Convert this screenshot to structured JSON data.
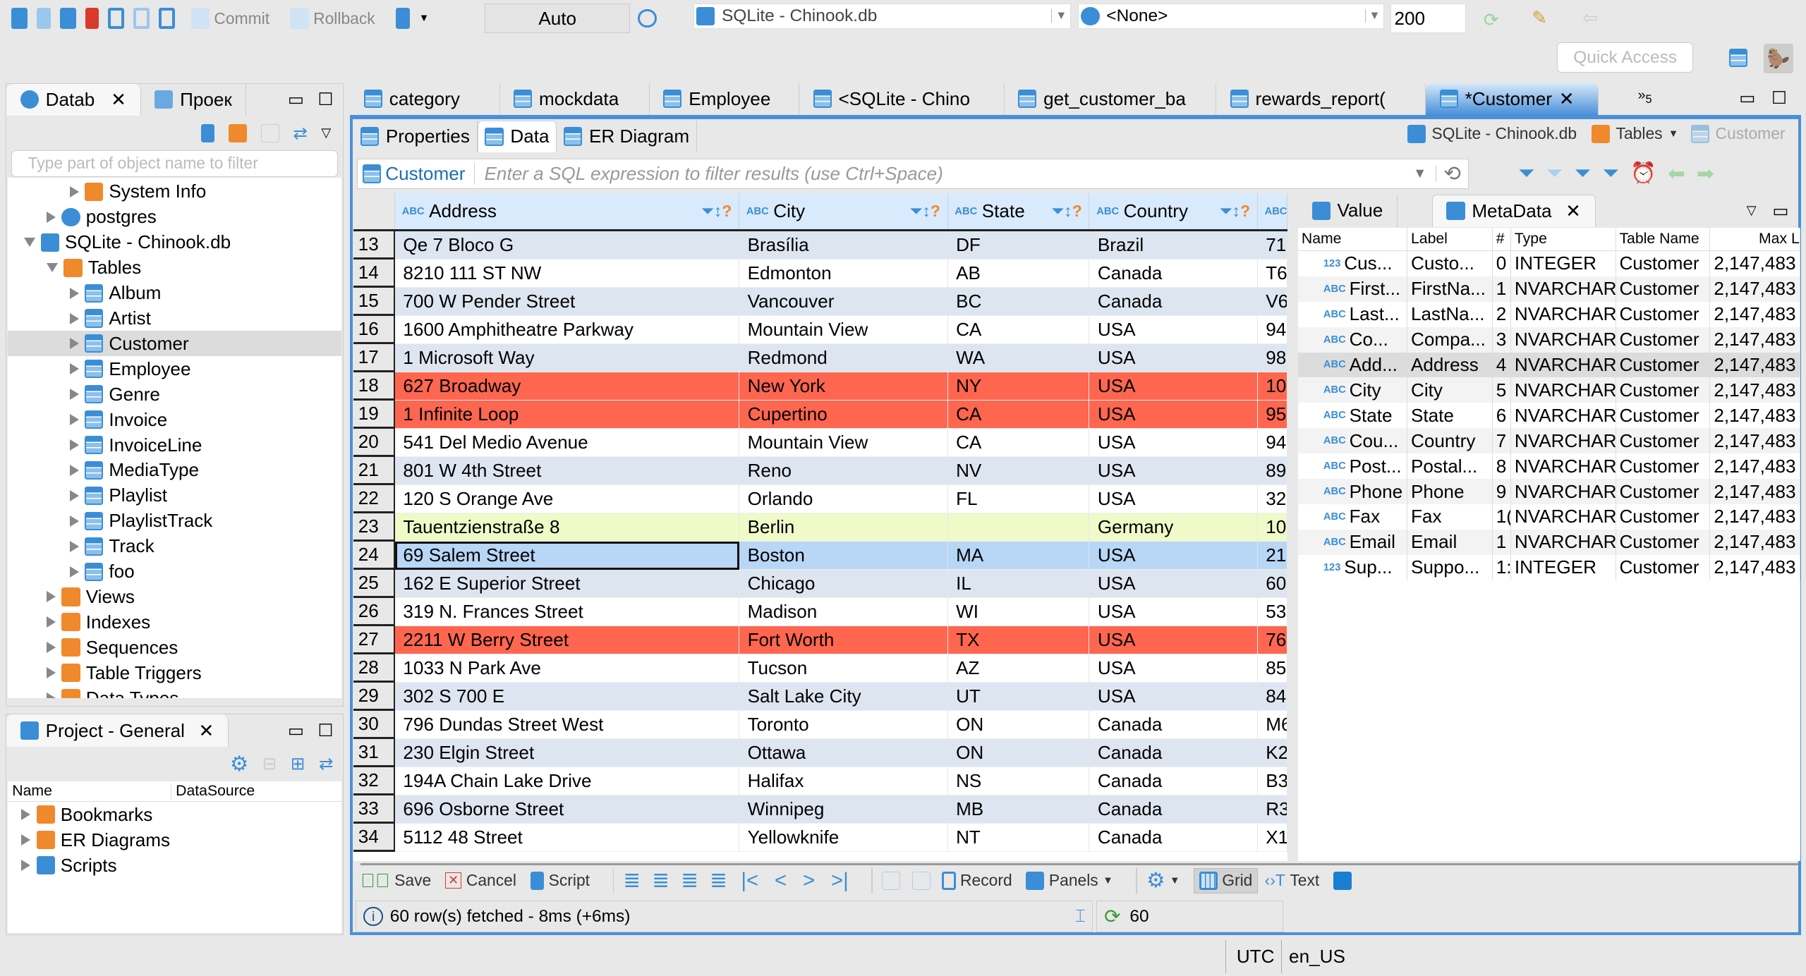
{
  "toolbar": {
    "commit": "Commit",
    "rollback": "Rollback",
    "mode": "Auto",
    "connection": "SQLite - Chinook.db",
    "schema": "<None>",
    "limit": "200",
    "quick_access": "Quick Access"
  },
  "left_panel": {
    "tabs": [
      {
        "label": "Datab"
      },
      {
        "label": "Проек"
      }
    ],
    "filter_placeholder": "Type part of object name to filter",
    "tree": [
      {
        "label": "System Info",
        "level": 2,
        "icon": "info-folder-icon"
      },
      {
        "label": "postgres",
        "level": 1,
        "icon": "database-icon"
      },
      {
        "label": "SQLite - Chinook.db",
        "level": 0,
        "icon": "sqlite-icon",
        "open": true
      },
      {
        "label": "Tables",
        "level": 1,
        "icon": "folder-icon",
        "open": true
      },
      {
        "label": "Album",
        "level": 2,
        "icon": "table-icon"
      },
      {
        "label": "Artist",
        "level": 2,
        "icon": "table-icon"
      },
      {
        "label": "Customer",
        "level": 2,
        "icon": "table-icon",
        "selected": true
      },
      {
        "label": "Employee",
        "level": 2,
        "icon": "table-icon"
      },
      {
        "label": "Genre",
        "level": 2,
        "icon": "table-icon"
      },
      {
        "label": "Invoice",
        "level": 2,
        "icon": "table-icon"
      },
      {
        "label": "InvoiceLine",
        "level": 2,
        "icon": "table-icon"
      },
      {
        "label": "MediaType",
        "level": 2,
        "icon": "table-icon"
      },
      {
        "label": "Playlist",
        "level": 2,
        "icon": "table-icon"
      },
      {
        "label": "PlaylistTrack",
        "level": 2,
        "icon": "table-icon"
      },
      {
        "label": "Track",
        "level": 2,
        "icon": "table-icon"
      },
      {
        "label": "foo",
        "level": 2,
        "icon": "table-icon"
      },
      {
        "label": "Views",
        "level": 1,
        "icon": "views-icon"
      },
      {
        "label": "Indexes",
        "level": 1,
        "icon": "folder-icon"
      },
      {
        "label": "Sequences",
        "level": 1,
        "icon": "folder-icon"
      },
      {
        "label": "Table Triggers",
        "level": 1,
        "icon": "folder-icon"
      },
      {
        "label": "Data Types",
        "level": 1,
        "icon": "folder-icon"
      }
    ]
  },
  "project_panel": {
    "title": "Project - General",
    "col_name": "Name",
    "col_datasource": "DataSource",
    "items": [
      {
        "label": "Bookmarks"
      },
      {
        "label": "ER Diagrams"
      },
      {
        "label": "Scripts"
      }
    ]
  },
  "editor_tabs": [
    {
      "label": "category"
    },
    {
      "label": "mockdata"
    },
    {
      "label": "Employee"
    },
    {
      "label": "<SQLite - Chino"
    },
    {
      "label": "get_customer_ba"
    },
    {
      "label": "rewards_report("
    },
    {
      "label": "*Customer",
      "active": true
    }
  ],
  "editor_tabs_overflow": "5",
  "sub_tabs": [
    {
      "label": "Properties"
    },
    {
      "label": "Data",
      "active": true
    },
    {
      "label": "ER Diagram"
    }
  ],
  "breadcrumb": {
    "connection": "SQLite - Chinook.db",
    "folder": "Tables",
    "table": "Customer"
  },
  "filter": {
    "entity": "Customer",
    "placeholder": "Enter a SQL expression to filter results (use Ctrl+Space)"
  },
  "grid": {
    "columns": [
      "Address",
      "City",
      "State",
      "Country",
      "ABC"
    ],
    "rows": [
      {
        "n": "13",
        "c": [
          "Qe 7 Bloco G",
          "Brasília",
          "DF",
          "Brazil",
          "71"
        ]
      },
      {
        "n": "14",
        "c": [
          "8210 111 ST NW",
          "Edmonton",
          "AB",
          "Canada",
          "T6"
        ]
      },
      {
        "n": "15",
        "c": [
          "700 W Pender Street",
          "Vancouver",
          "BC",
          "Canada",
          "V6"
        ]
      },
      {
        "n": "16",
        "c": [
          "1600 Amphitheatre Parkway",
          "Mountain View",
          "CA",
          "USA",
          "94"
        ]
      },
      {
        "n": "17",
        "c": [
          "1 Microsoft Way",
          "Redmond",
          "WA",
          "USA",
          "98"
        ]
      },
      {
        "n": "18",
        "c": [
          "627 Broadway",
          "New York",
          "NY",
          "USA",
          "10"
        ],
        "hl": "red"
      },
      {
        "n": "19",
        "c": [
          "1 Infinite Loop",
          "Cupertino",
          "CA",
          "USA",
          "95"
        ],
        "hl": "red"
      },
      {
        "n": "20",
        "c": [
          "541 Del Medio Avenue",
          "Mountain View",
          "CA",
          "USA",
          "94"
        ]
      },
      {
        "n": "21",
        "c": [
          "801 W 4th Street",
          "Reno",
          "NV",
          "USA",
          "89"
        ]
      },
      {
        "n": "22",
        "c": [
          "120 S Orange Ave",
          "Orlando",
          "FL",
          "USA",
          "32"
        ]
      },
      {
        "n": "23",
        "c": [
          "Tauentzienstraße 8",
          "Berlin",
          "",
          "Germany",
          "10"
        ],
        "hl": "yel"
      },
      {
        "n": "24",
        "c": [
          "69 Salem Street",
          "Boston",
          "MA",
          "USA",
          "21"
        ],
        "hl": "sel"
      },
      {
        "n": "25",
        "c": [
          "162 E Superior Street",
          "Chicago",
          "IL",
          "USA",
          "60"
        ]
      },
      {
        "n": "26",
        "c": [
          "319 N. Frances Street",
          "Madison",
          "WI",
          "USA",
          "53"
        ]
      },
      {
        "n": "27",
        "c": [
          "2211 W Berry Street",
          "Fort Worth",
          "TX",
          "USA",
          "76"
        ],
        "hl": "red"
      },
      {
        "n": "28",
        "c": [
          "1033 N Park Ave",
          "Tucson",
          "AZ",
          "USA",
          "85"
        ]
      },
      {
        "n": "29",
        "c": [
          "302 S 700 E",
          "Salt Lake City",
          "UT",
          "USA",
          "84"
        ]
      },
      {
        "n": "30",
        "c": [
          "796 Dundas Street West",
          "Toronto",
          "ON",
          "Canada",
          "M6"
        ]
      },
      {
        "n": "31",
        "c": [
          "230 Elgin Street",
          "Ottawa",
          "ON",
          "Canada",
          "K2"
        ]
      },
      {
        "n": "32",
        "c": [
          "194A Chain Lake Drive",
          "Halifax",
          "NS",
          "Canada",
          "B3"
        ]
      },
      {
        "n": "33",
        "c": [
          "696 Osborne Street",
          "Winnipeg",
          "MB",
          "Canada",
          "R3"
        ]
      },
      {
        "n": "34",
        "c": [
          "5112 48 Street",
          "Yellowknife",
          "NT",
          "Canada",
          "X1"
        ]
      }
    ]
  },
  "side_panel": {
    "tabs": [
      {
        "label": "Value"
      },
      {
        "label": "MetaData",
        "active": true
      }
    ],
    "columns": [
      "Name",
      "Label",
      "#",
      "Type",
      "Table Name",
      "Max L"
    ],
    "rows": [
      {
        "t": "123",
        "c": [
          "Cus...",
          "Custo...",
          "0",
          "INTEGER",
          "Customer",
          "2,147,483"
        ]
      },
      {
        "t": "ABC",
        "c": [
          "First...",
          "FirstNa...",
          "1",
          "NVARCHAR",
          "Customer",
          "2,147,483"
        ]
      },
      {
        "t": "ABC",
        "c": [
          "Last...",
          "LastNa...",
          "2",
          "NVARCHAR",
          "Customer",
          "2,147,483"
        ]
      },
      {
        "t": "ABC",
        "c": [
          "Co...",
          "Compa...",
          "3",
          "NVARCHAR",
          "Customer",
          "2,147,483"
        ]
      },
      {
        "t": "ABC",
        "c": [
          "Add...",
          "Address",
          "4",
          "NVARCHAR",
          "Customer",
          "2,147,483"
        ],
        "hl": true
      },
      {
        "t": "ABC",
        "c": [
          "City",
          "City",
          "5",
          "NVARCHAR",
          "Customer",
          "2,147,483"
        ]
      },
      {
        "t": "ABC",
        "c": [
          "State",
          "State",
          "6",
          "NVARCHAR",
          "Customer",
          "2,147,483"
        ]
      },
      {
        "t": "ABC",
        "c": [
          "Cou...",
          "Country",
          "7",
          "NVARCHAR",
          "Customer",
          "2,147,483"
        ]
      },
      {
        "t": "ABC",
        "c": [
          "Post...",
          "Postal...",
          "8",
          "NVARCHAR",
          "Customer",
          "2,147,483"
        ]
      },
      {
        "t": "ABC",
        "c": [
          "Phone",
          "Phone",
          "9",
          "NVARCHAR",
          "Customer",
          "2,147,483"
        ]
      },
      {
        "t": "ABC",
        "c": [
          "Fax",
          "Fax",
          "1(",
          "NVARCHAR",
          "Customer",
          "2,147,483"
        ]
      },
      {
        "t": "ABC",
        "c": [
          "Email",
          "Email",
          "1",
          "NVARCHAR",
          "Customer",
          "2,147,483"
        ]
      },
      {
        "t": "123",
        "c": [
          "Sup...",
          "Suppo...",
          "1:",
          "INTEGER",
          "Customer",
          "2,147,483"
        ]
      }
    ]
  },
  "bottom_toolbar": {
    "save": "Save",
    "cancel": "Cancel",
    "script": "Script",
    "record": "Record",
    "panels": "Panels",
    "grid": "Grid",
    "text": "Text"
  },
  "status": {
    "message": "60 row(s) fetched - 8ms (+6ms)",
    "count": "60"
  },
  "statusbar": {
    "timezone": "UTC",
    "locale": "en_US"
  },
  "colors": {
    "accent": "#4a90d9",
    "highlight_red": "#ff6650",
    "highlight_yellow": "#effac8",
    "selected": "#b8d6f6"
  }
}
